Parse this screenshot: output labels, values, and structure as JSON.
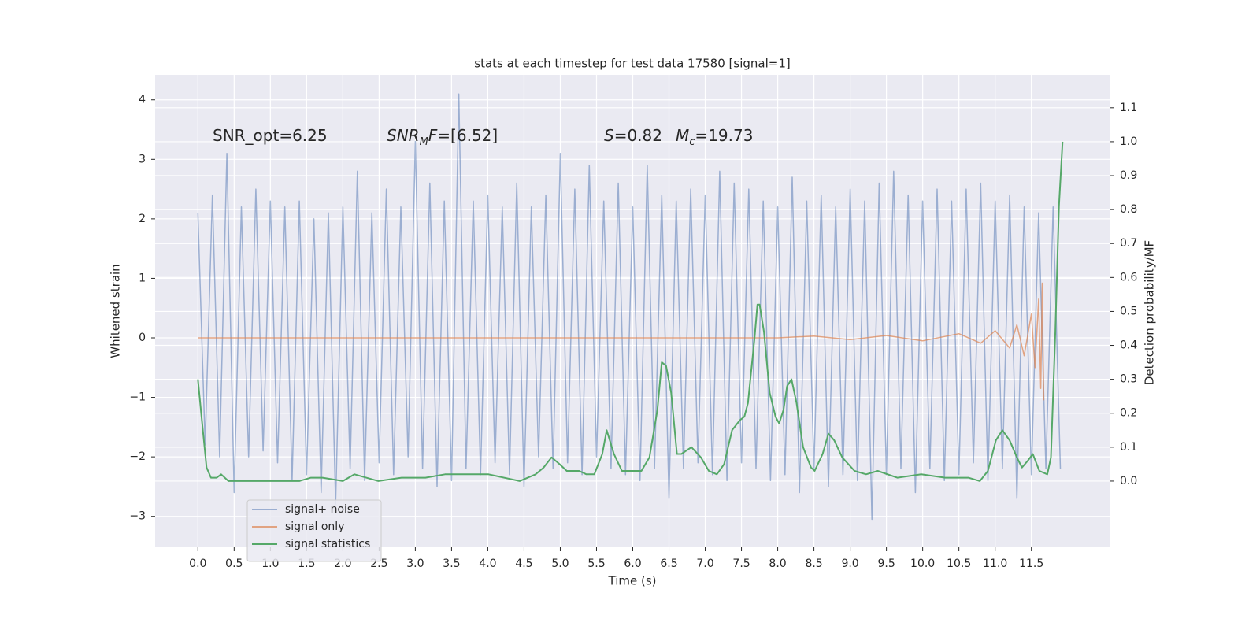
{
  "chart_data": {
    "type": "line",
    "title": "stats at each timestep for test data 17580 [signal=1]",
    "x_label": "Time (s)",
    "y_label": "Whitened strain",
    "y2_label": "Detection probability/MF",
    "grid": true,
    "legend": "lower left",
    "xlim": [
      -0.59,
      12.59
    ],
    "ylim": [
      -3.52,
      4.42
    ],
    "y2lim": [
      -0.195,
      1.197
    ],
    "xticks": [
      {
        "value": 0,
        "label": "0.0"
      },
      0.5,
      {
        "value": 1,
        "label": "1.0"
      },
      1.5,
      {
        "value": 2,
        "label": "2.0"
      },
      2.5,
      {
        "value": 3,
        "label": "3.0"
      },
      3.5,
      {
        "value": 4,
        "label": "4.0"
      },
      4.5,
      {
        "value": 5,
        "label": "5.0"
      },
      5.5,
      {
        "value": 6,
        "label": "6.0"
      },
      6.5,
      {
        "value": 7,
        "label": "7.0"
      },
      7.5,
      {
        "value": 8,
        "label": "8.0"
      },
      8.5,
      {
        "value": 9,
        "label": "9.0"
      },
      9.5,
      {
        "value": 10,
        "label": "10.0"
      },
      10.5,
      {
        "value": 11,
        "label": "11.0"
      },
      11.5
    ],
    "yticks": [
      {
        "value": -3,
        "label": "−3"
      },
      {
        "value": -2,
        "label": "−2"
      },
      {
        "value": -1,
        "label": "−1"
      },
      0,
      1,
      2,
      3,
      4
    ],
    "y2ticks": [
      {
        "value": 0,
        "label": "0.0"
      },
      0.1,
      0.2,
      0.3,
      0.4,
      0.5,
      0.6,
      0.7,
      0.8,
      0.9,
      {
        "value": 1,
        "label": "1.0"
      },
      1.1
    ],
    "annotations": [
      [
        {
          "text": "SNR_opt=6.25",
          "italic": false,
          "sub": false
        }
      ],
      [
        {
          "text": "SNR",
          "italic": true,
          "sub": false
        },
        {
          "text": "M",
          "italic": true,
          "sub": true
        },
        {
          "text": "F",
          "italic": true,
          "sub": false
        },
        {
          "text": "=[6.52]",
          "italic": false,
          "sub": false
        }
      ],
      [
        {
          "text": "S",
          "italic": true,
          "sub": false
        },
        {
          "text": "=0.82",
          "italic": false,
          "sub": false
        }
      ],
      [
        {
          "text": "M",
          "italic": true,
          "sub": false
        },
        {
          "text": "c",
          "italic": true,
          "sub": true
        },
        {
          "text": "=19.73",
          "italic": false,
          "sub": false
        }
      ]
    ],
    "series": [
      {
        "name": "signal+ noise",
        "color": "#4c72b0",
        "opacity": 0.5,
        "axis": "y",
        "x": [
          0,
          0.1,
          0.2,
          0.3,
          0.4,
          0.5,
          0.6,
          0.7,
          0.8,
          0.9,
          1,
          1.1,
          1.2,
          1.3,
          1.4,
          1.5,
          1.6,
          1.7,
          1.8,
          1.9,
          2,
          2.1,
          2.2,
          2.3,
          2.4,
          2.5,
          2.6,
          2.7,
          2.8,
          2.9,
          3,
          3.1,
          3.2,
          3.3,
          3.4,
          3.5,
          3.6,
          3.7,
          3.8,
          3.9,
          4,
          4.1,
          4.2,
          4.3,
          4.4,
          4.5,
          4.6,
          4.7,
          4.8,
          4.9,
          5,
          5.1,
          5.2,
          5.3,
          5.4,
          5.5,
          5.6,
          5.7,
          5.8,
          5.9,
          6,
          6.1,
          6.2,
          6.3,
          6.4,
          6.5,
          6.6,
          6.7,
          6.8,
          6.9,
          7,
          7.1,
          7.2,
          7.3,
          7.4,
          7.5,
          7.6,
          7.7,
          7.8,
          7.9,
          8,
          8.1,
          8.2,
          8.3,
          8.4,
          8.5,
          8.6,
          8.7,
          8.8,
          8.9,
          9,
          9.1,
          9.2,
          9.3,
          9.4,
          9.5,
          9.6,
          9.7,
          9.8,
          9.9,
          10,
          10.1,
          10.2,
          10.3,
          10.4,
          10.5,
          10.6,
          10.7,
          10.8,
          10.9,
          11,
          11.1,
          11.2,
          11.3,
          11.4,
          11.5,
          11.6,
          11.7,
          11.8,
          11.9
        ],
        "values": [
          2.1,
          -1.8,
          2.4,
          -2.0,
          3.1,
          -2.6,
          2.2,
          -2.0,
          2.5,
          -1.9,
          2.3,
          -2.1,
          2.2,
          -2.4,
          2.3,
          -2.3,
          2.0,
          -2.6,
          2.1,
          -2.8,
          2.2,
          -2.2,
          2.8,
          -2.4,
          2.1,
          -2.1,
          2.5,
          -2.3,
          2.2,
          -2.0,
          3.3,
          -2.2,
          2.6,
          -2.5,
          2.3,
          -2.4,
          4.1,
          -2.2,
          2.3,
          -2.3,
          2.4,
          -2.1,
          2.2,
          -2.3,
          2.6,
          -2.5,
          2.2,
          -2.0,
          2.4,
          -2.2,
          3.1,
          -2.1,
          2.5,
          -2.3,
          2.9,
          -2.0,
          2.3,
          -2.2,
          2.6,
          -2.3,
          2.2,
          -2.4,
          2.9,
          -2.2,
          2.4,
          -2.7,
          2.3,
          -2.2,
          2.5,
          -2.1,
          2.4,
          -2.3,
          2.8,
          -2.4,
          2.6,
          -2.1,
          2.5,
          -2.2,
          2.3,
          -2.4,
          2.2,
          -2.3,
          2.7,
          -2.6,
          2.3,
          -2.2,
          2.4,
          -2.5,
          2.2,
          -2.3,
          2.5,
          -2.4,
          2.3,
          -3.05,
          2.6,
          -2.3,
          2.8,
          -2.2,
          2.4,
          -2.6,
          2.3,
          -2.2,
          2.5,
          -2.4,
          2.3,
          -2.3,
          2.5,
          -2.1,
          2.6,
          -2.4,
          2.3,
          -2.2,
          2.4,
          -2.7,
          2.2,
          -2.3,
          2.1,
          -2.2,
          2.2,
          -2.2
        ]
      },
      {
        "name": "signal only",
        "color": "#dd8452",
        "opacity": 0.7,
        "axis": "y",
        "x": [
          0,
          8.0,
          8.5,
          9.0,
          9.5,
          10.0,
          10.5,
          10.8,
          11.0,
          11.2,
          11.3,
          11.4,
          11.5,
          11.55,
          11.6,
          11.63,
          11.65,
          11.67
        ],
        "values": [
          0,
          0,
          0.03,
          -0.03,
          0.04,
          -0.05,
          0.07,
          -0.09,
          0.12,
          -0.17,
          0.22,
          -0.3,
          0.4,
          -0.5,
          0.65,
          -0.85,
          0.92,
          -1.05
        ]
      },
      {
        "name": "signal statistics",
        "color": "#55a868",
        "opacity": 1,
        "axis": "y2",
        "x": [
          0,
          0.05,
          0.12,
          0.18,
          0.26,
          0.32,
          0.42,
          0.75,
          1.4,
          1.56,
          1.72,
          2.0,
          2.16,
          2.49,
          2.81,
          3.14,
          3.41,
          3.68,
          4.01,
          4.44,
          4.66,
          4.77,
          4.88,
          4.99,
          5.09,
          5.26,
          5.36,
          5.47,
          5.58,
          5.64,
          5.74,
          5.85,
          5.96,
          6.12,
          6.23,
          6.34,
          6.4,
          6.46,
          6.53,
          6.61,
          6.67,
          6.81,
          6.94,
          7.05,
          7.16,
          7.26,
          7.37,
          7.48,
          7.54,
          7.59,
          7.68,
          7.72,
          7.75,
          7.81,
          7.89,
          7.97,
          8.02,
          8.08,
          8.13,
          8.19,
          8.26,
          8.35,
          8.46,
          8.51,
          8.62,
          8.7,
          8.78,
          8.89,
          9.06,
          9.22,
          9.38,
          9.65,
          9.98,
          10.31,
          10.63,
          10.79,
          10.9,
          11.01,
          11.1,
          11.2,
          11.3,
          11.37,
          11.45,
          11.52,
          11.61,
          11.72,
          11.77,
          11.83,
          11.88,
          11.93
        ],
        "values": [
          0.3,
          0.19,
          0.04,
          0.01,
          0.01,
          0.02,
          0,
          0,
          0,
          0.01,
          0.01,
          0,
          0.02,
          0,
          0.01,
          0.01,
          0.02,
          0.02,
          0.02,
          0,
          0.02,
          0.04,
          0.07,
          0.05,
          0.03,
          0.03,
          0.02,
          0.02,
          0.08,
          0.15,
          0.08,
          0.03,
          0.03,
          0.03,
          0.07,
          0.21,
          0.35,
          0.34,
          0.26,
          0.08,
          0.08,
          0.1,
          0.07,
          0.03,
          0.02,
          0.05,
          0.15,
          0.18,
          0.19,
          0.23,
          0.42,
          0.52,
          0.52,
          0.44,
          0.26,
          0.19,
          0.17,
          0.21,
          0.28,
          0.3,
          0.23,
          0.1,
          0.04,
          0.03,
          0.08,
          0.14,
          0.12,
          0.07,
          0.03,
          0.02,
          0.03,
          0.01,
          0.02,
          0.01,
          0.01,
          0,
          0.03,
          0.12,
          0.15,
          0.12,
          0.07,
          0.04,
          0.06,
          0.08,
          0.03,
          0.02,
          0.07,
          0.44,
          0.81,
          1
        ]
      }
    ]
  }
}
